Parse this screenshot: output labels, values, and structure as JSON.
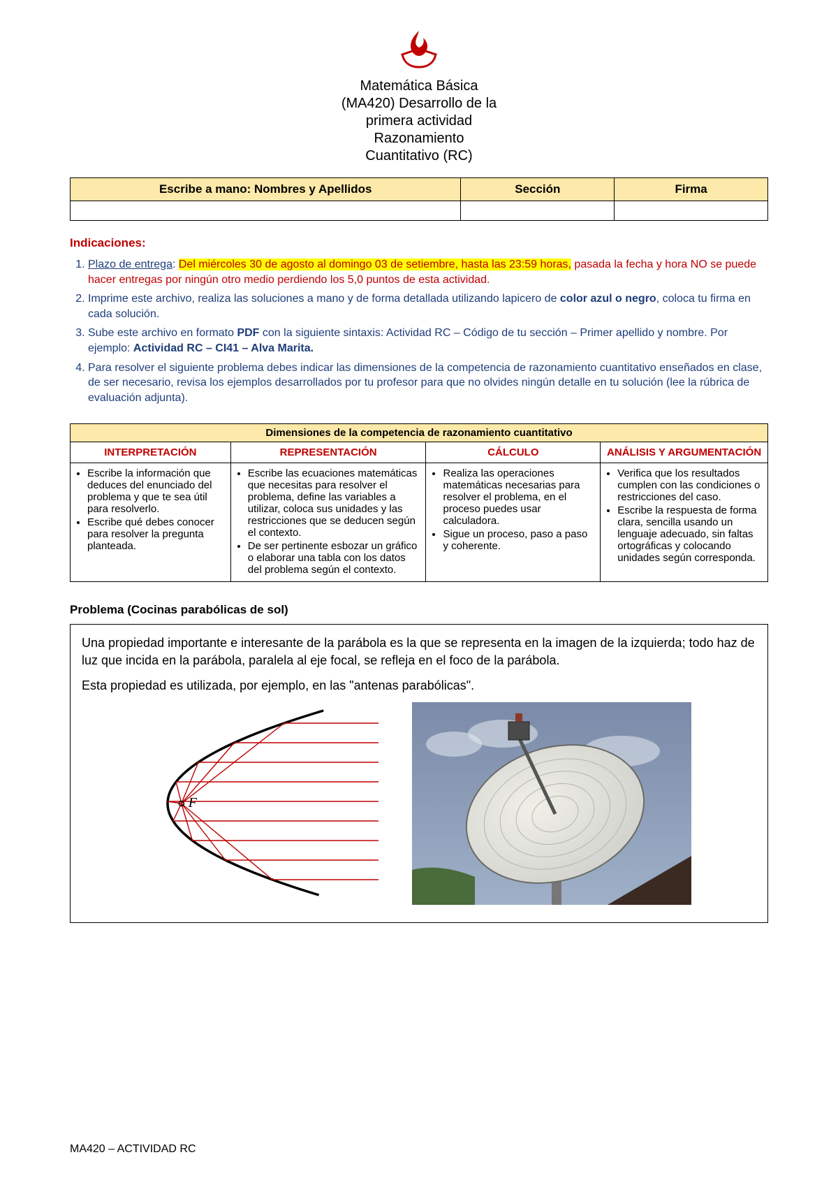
{
  "logo": {
    "fill": "#c00000"
  },
  "header": {
    "line1": "Matemática Básica",
    "line2": "(MA420) Desarrollo de la",
    "line3": "primera actividad",
    "line4": "Razonamiento",
    "line5": "Cuantitativo (RC)"
  },
  "name_table": {
    "col1": "Escribe a mano: Nombres y Apellidos",
    "col2": "Sección",
    "col3": "Firma"
  },
  "indicaciones_title": "Indicaciones:",
  "indicaciones": {
    "i1_a": "Plazo de entrega",
    "i1_b": ": ",
    "i1_hl": "Del miércoles 30 de agosto al domingo 03 de setiembre, hasta las 23:59 horas,",
    "i1_c": " pasada la fecha y hora NO se puede hacer entregas por ningún otro medio perdiendo los 5,0 puntos de esta actividad.",
    "i2_a": "Imprime este archivo, realiza las soluciones a mano y de forma detallada utilizando lapicero de ",
    "i2_b": "color azul o negro",
    "i2_c": ", coloca tu firma en cada solución.",
    "i3_a": "Sube este archivo en formato ",
    "i3_b": "PDF",
    "i3_c": " con la siguiente sintaxis: Actividad RC – Código de tu sección – Primer apellido y nombre. Por ejemplo: ",
    "i3_d": "Actividad RC – CI41 – Alva Marita.",
    "i4": "Para resolver el siguiente problema debes indicar las dimensiones de la competencia de razonamiento cuantitativo enseñados en clase, de ser necesario, revisa los ejemplos desarrollados por tu profesor para que no olvides ningún detalle en tu solución (lee la rúbrica de evaluación adjunta)."
  },
  "dim": {
    "title": "Dimensiones de la competencia de razonamiento cuantitativo",
    "h1": "INTERPRETACIÓN",
    "h2": "REPRESENTACIÓN",
    "h3": "CÁLCULO",
    "h4": "ANÁLISIS Y ARGUMENTACIÓN",
    "c1a": "Escribe la información que deduces del enunciado del problema y que te sea útil para resolverlo.",
    "c1b": "Escribe qué debes conocer para resolver la pregunta planteada.",
    "c2a": "Escribe las ecuaciones matemáticas que necesitas para resolver el problema, define las variables a utilizar, coloca sus unidades y las restricciones que se deducen según el contexto.",
    "c2b": "De ser pertinente esbozar un gráfico o elaborar una tabla con los datos del problema según el contexto.",
    "c3a": "Realiza las operaciones matemáticas necesarias para resolver el problema, en el proceso puedes usar calculadora.",
    "c3b": "Sigue un proceso, paso a paso y coherente.",
    "c4a": "Verifica que los resultados cumplen con las condiciones o restricciones del caso.",
    "c4b": "Escribe la respuesta de forma clara, sencilla usando un lenguaje adecuado, sin faltas ortográficas y colocando unidades según corresponda."
  },
  "problem": {
    "title": "Problema (Cocinas parabólicas de sol)",
    "p1": "Una propiedad importante e interesante de la parábola es la que se representa en la imagen de la izquierda; todo haz de luz que incida en la parábola, paralela al eje focal, se refleja en el foco de la parábola.",
    "p2": "Esta propiedad es utilizada, por ejemplo, en las \"antenas parabólicas\".",
    "focus_label": "F"
  },
  "footer": "MA420 – ACTIVIDAD RC",
  "diagram": {
    "parabola_stroke": "#000000",
    "ray_stroke": "#c00000",
    "ray_width": 1.4
  },
  "antenna": {
    "sky_top": "#7a8aa8",
    "sky_bot": "#9fb0c8",
    "dish_fill": "#d0d0cc",
    "dish_stroke": "#6b6b66",
    "arm": "#555",
    "roof": "#3a2a22"
  }
}
